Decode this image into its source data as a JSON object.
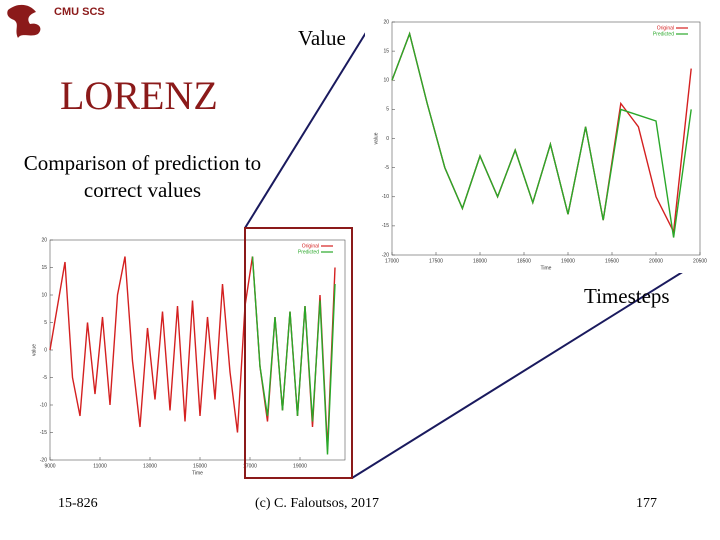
{
  "slide": {
    "logo": "CMU SCS",
    "title": "LORENZ",
    "subtitle": "Comparison of prediction to correct values",
    "y_callout": "Value",
    "x_callout": "Timesteps",
    "course": "15-826",
    "copyright": "(c) C. Faloutsos, 2017",
    "page": "177"
  },
  "chart_data": [
    {
      "type": "line",
      "x_label": "Time",
      "y_label": "value",
      "x": [
        9000,
        9300,
        9600,
        9900,
        10200,
        10500,
        10800,
        11100,
        11400,
        11700,
        12000,
        12300,
        12600,
        12900,
        13200,
        13500,
        13800,
        14100,
        14400,
        14700,
        15000,
        15300,
        15600,
        15900,
        16200,
        16500,
        16800,
        17100,
        17400,
        17700,
        18000,
        18300,
        18600,
        18900,
        19200,
        19500,
        19800,
        20100,
        20400
      ],
      "series": [
        {
          "name": "Original",
          "color": "#d42020",
          "values": [
            0,
            8,
            16,
            -5,
            -12,
            5,
            -8,
            6,
            -10,
            10,
            17,
            -2,
            -14,
            4,
            -9,
            7,
            -11,
            8,
            -13,
            9,
            -12,
            6,
            -9,
            12,
            -4,
            -15,
            8,
            17,
            -3,
            -13,
            6,
            -11,
            7,
            -12,
            8,
            -14,
            10,
            -18,
            15
          ]
        },
        {
          "name": "Predicted",
          "color": "#2aa82a",
          "values": [
            null,
            null,
            null,
            null,
            null,
            null,
            null,
            null,
            null,
            null,
            null,
            null,
            null,
            null,
            null,
            null,
            null,
            null,
            null,
            null,
            null,
            null,
            null,
            null,
            null,
            null,
            null,
            17,
            -3,
            -12,
            6,
            -11,
            7,
            -12,
            8,
            -13,
            9,
            -19,
            12
          ]
        }
      ],
      "xlim": [
        9000,
        20800
      ],
      "xticks": [
        9000,
        11000,
        13000,
        15000,
        17000,
        19000
      ],
      "ylim": [
        -20,
        20
      ],
      "yticks": [
        -20,
        -15,
        -10,
        -5,
        0,
        5,
        10,
        15,
        20
      ],
      "legend": "top-right"
    },
    {
      "type": "line",
      "x_label": "Time",
      "y_label": "value",
      "x": [
        17000,
        17200,
        17400,
        17600,
        17800,
        18000,
        18200,
        18400,
        18600,
        18800,
        19000,
        19200,
        19400,
        19600,
        19800,
        20000,
        20200,
        20400
      ],
      "series": [
        {
          "name": "Original",
          "color": "#d42020",
          "values": [
            10,
            18,
            6,
            -5,
            -12,
            -3,
            -10,
            -2,
            -11,
            -1,
            -13,
            2,
            -14,
            6,
            2,
            -10,
            -16,
            12
          ]
        },
        {
          "name": "Predicted",
          "color": "#2aa82a",
          "values": [
            10,
            18,
            6,
            -5,
            -12,
            -3,
            -10,
            -2,
            -11,
            -1,
            -13,
            2,
            -14,
            5,
            4,
            3,
            -17,
            5
          ]
        }
      ],
      "xlim": [
        17000,
        20500
      ],
      "xticks": [
        17000,
        17500,
        18000,
        18500,
        19000,
        19500,
        20000,
        20500
      ],
      "ylim": [
        -20,
        20
      ],
      "yticks": [
        -20,
        -15,
        -10,
        -5,
        0,
        5,
        10,
        15,
        20
      ],
      "legend": "top-right"
    }
  ]
}
